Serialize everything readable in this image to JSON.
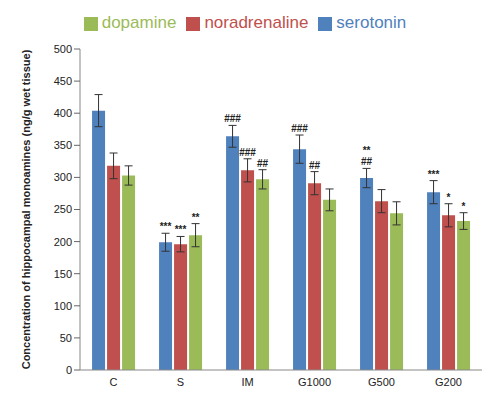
{
  "chart_data": {
    "type": "bar",
    "y_label": "Concentration of hippocampal monoamines (ng/g wet tissue)",
    "categories": [
      "C",
      "S",
      "IM",
      "G1000",
      "G500",
      "G200"
    ],
    "ylim": [
      0,
      500
    ],
    "yticks": [
      0,
      50,
      100,
      150,
      200,
      250,
      300,
      350,
      400,
      450,
      500
    ],
    "grid": false,
    "legend": "top",
    "series": [
      {
        "name": "serotonin",
        "color": "#4f81bd",
        "values": [
          404,
          199,
          364,
          344,
          299,
          277
        ],
        "errors": [
          25,
          14,
          17,
          22,
          15,
          18
        ],
        "annotations": [
          null,
          [
            "***"
          ],
          [
            "###"
          ],
          [
            "###"
          ],
          [
            "**",
            "##"
          ],
          [
            "***"
          ]
        ]
      },
      {
        "name": "noradrenaline",
        "color": "#c0504d",
        "values": [
          318,
          196,
          311,
          291,
          263,
          241
        ],
        "errors": [
          20,
          12,
          18,
          18,
          18,
          18
        ],
        "annotations": [
          null,
          [
            "***"
          ],
          [
            "###"
          ],
          [
            "##"
          ],
          null,
          [
            "*"
          ]
        ]
      },
      {
        "name": "dopamine",
        "color": "#9bbb59",
        "values": [
          303,
          210,
          297,
          265,
          244,
          232
        ],
        "errors": [
          15,
          18,
          15,
          17,
          18,
          13
        ],
        "annotations": [
          null,
          [
            "**"
          ],
          [
            "##"
          ],
          null,
          null,
          [
            "*"
          ]
        ]
      }
    ]
  }
}
